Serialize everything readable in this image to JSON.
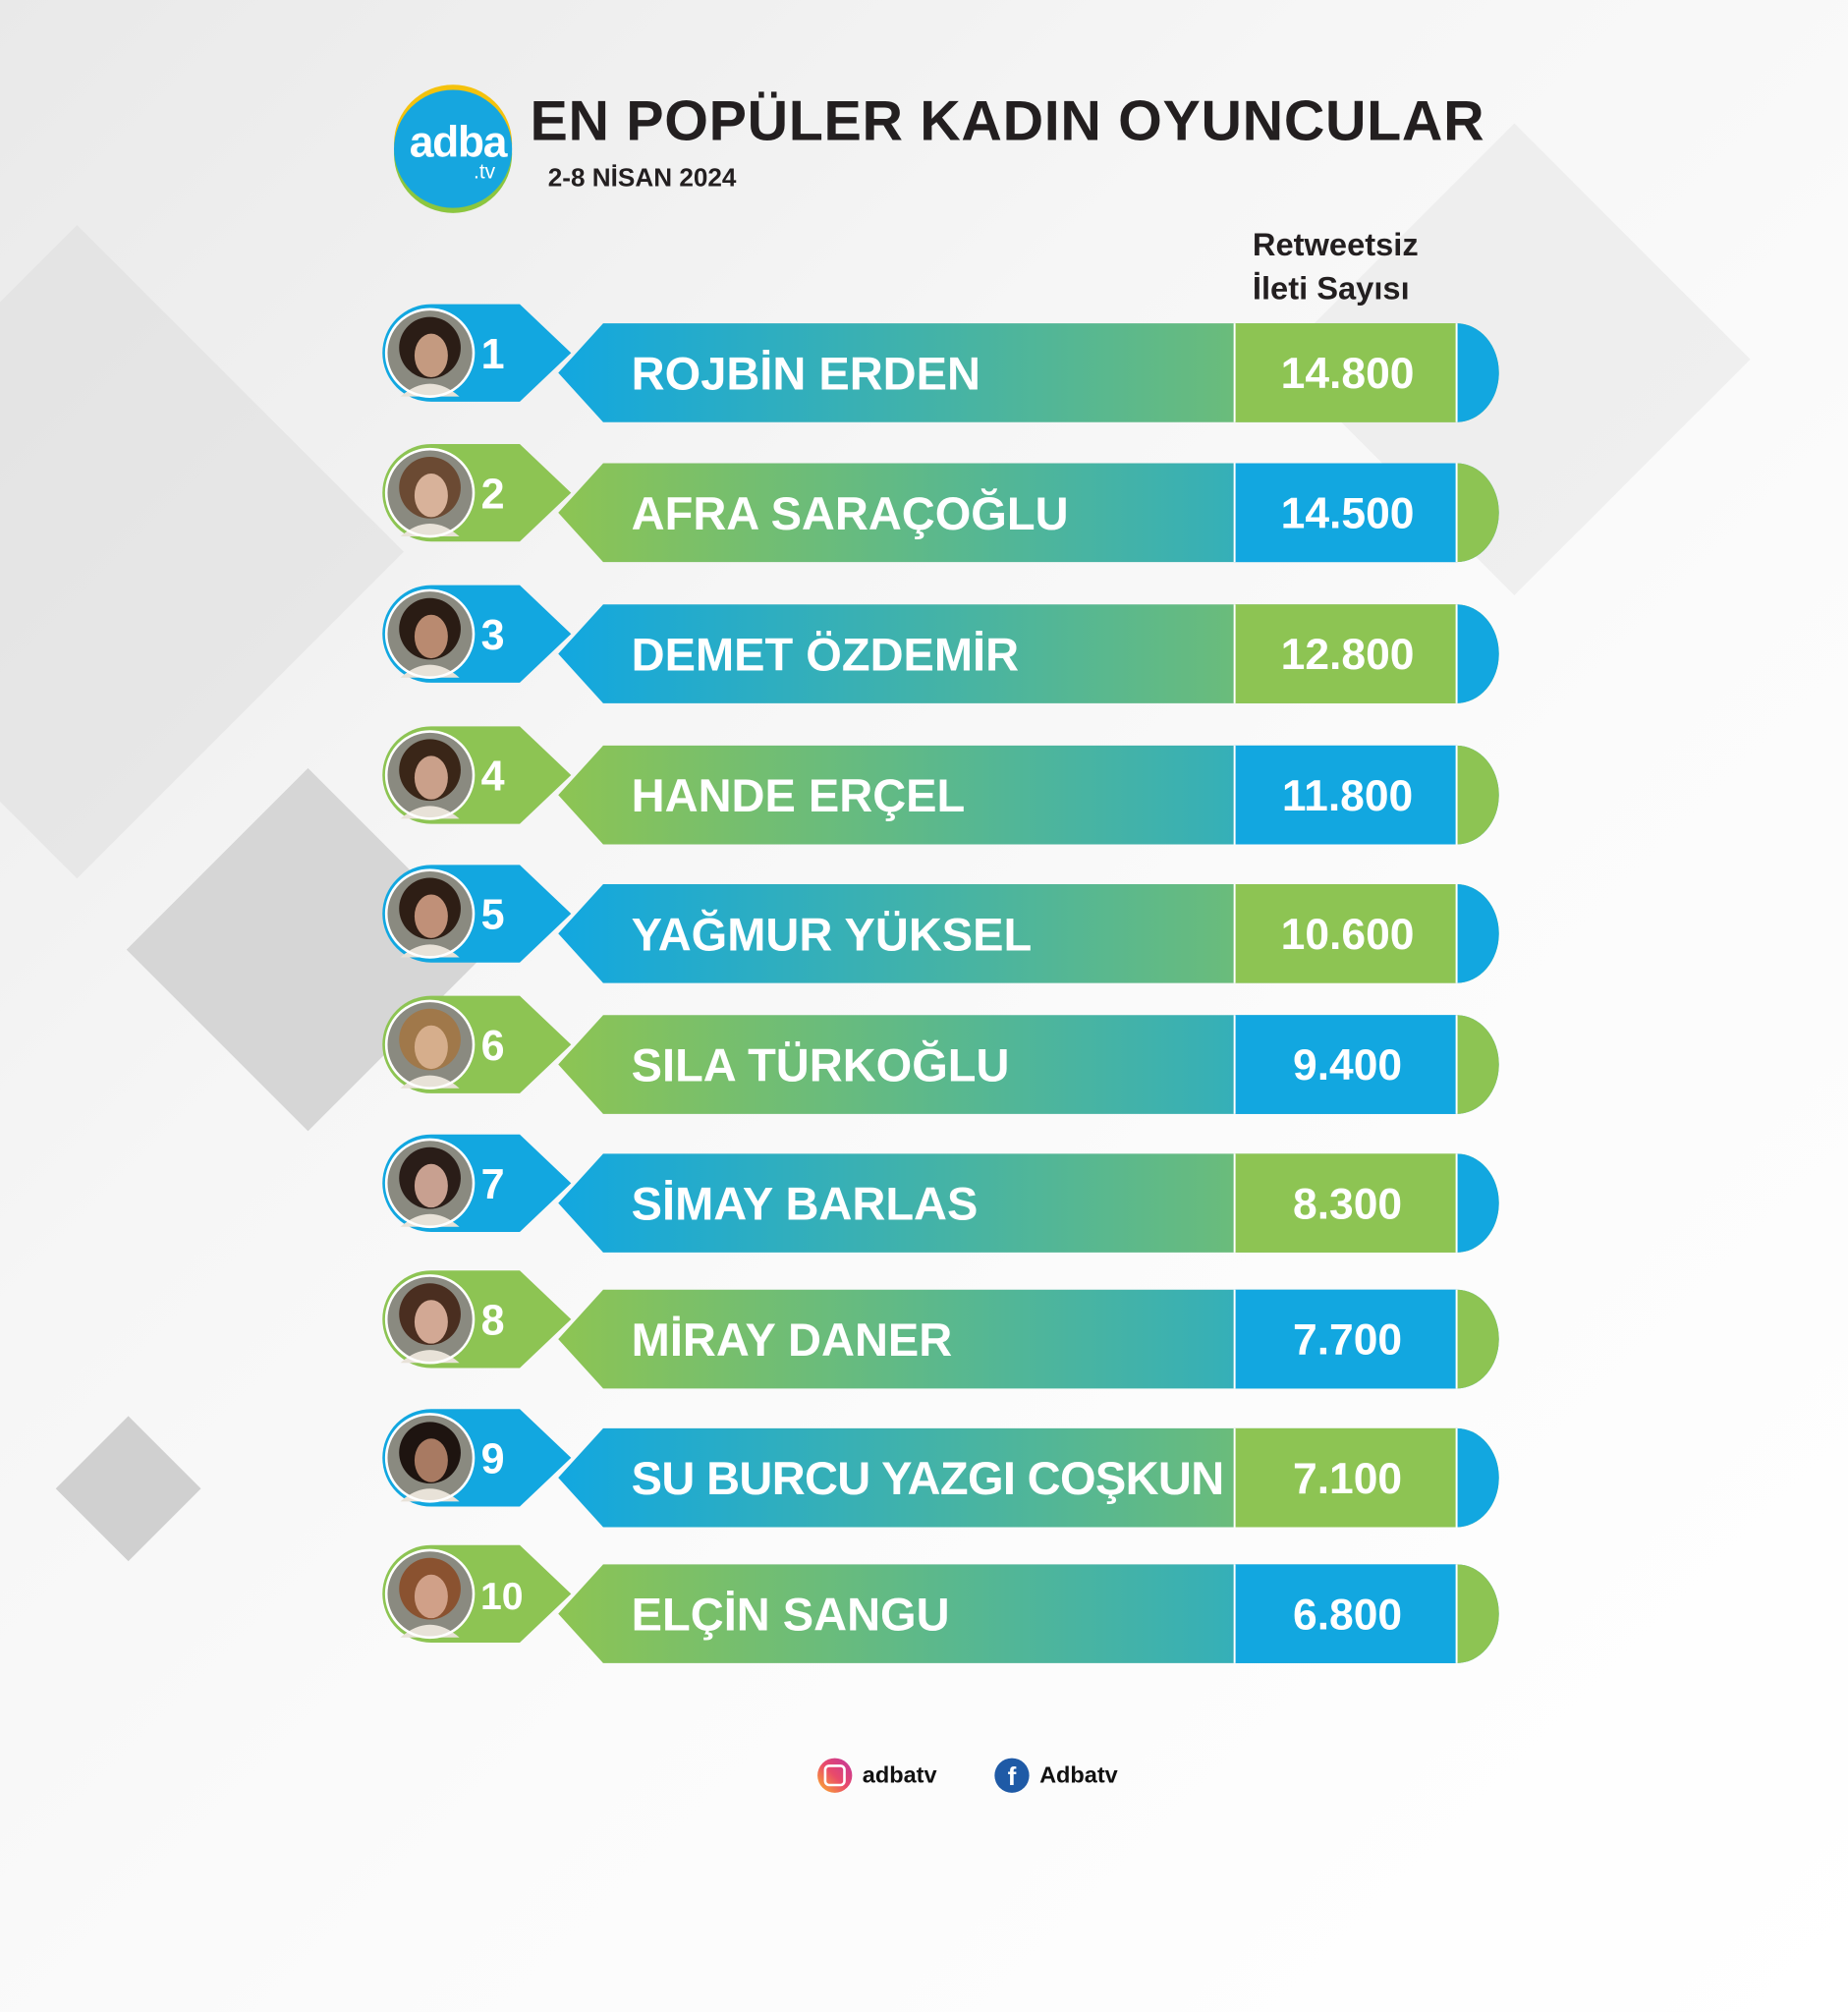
{
  "header": {
    "logo_text": "adba",
    "logo_suffix": ".tv",
    "title": "EN POPÜLER KADIN OYUNCULAR",
    "subtitle": "2-8 NİSAN 2024",
    "column_header_line1": "Retweetsiz",
    "column_header_line2": "İleti Sayısı"
  },
  "chart_data": {
    "type": "bar",
    "title": "EN POPÜLER KADIN OYUNCULAR",
    "subtitle": "2-8 NİSAN 2024",
    "ylabel": "Retweetsiz İleti Sayısı",
    "ranks": [
      "1",
      "2",
      "3",
      "4",
      "5",
      "6",
      "7",
      "8",
      "9",
      "10"
    ],
    "categories": [
      "ROJBİN ERDEN",
      "AFRA SARAÇOĞLU",
      "DEMET ÖZDEMİR",
      "HANDE ERÇEL",
      "YAĞMUR YÜKSEL",
      "SILA TÜRKOĞLU",
      "SİMAY BARLAS",
      "MİRAY DANER",
      "SU BURCU YAZGI COŞKUN",
      "ELÇİN SANGU"
    ],
    "values": [
      14800,
      14500,
      12800,
      11800,
      10600,
      9400,
      8300,
      7700,
      7100,
      6800
    ],
    "value_labels": [
      "14.800",
      "14.500",
      "12.800",
      "11.800",
      "10.600",
      "9.400",
      "8.300",
      "7.700",
      "7.100",
      "6.800"
    ],
    "colors": {
      "blue": "#12a7e0",
      "green": "#8dc453"
    }
  },
  "footer": {
    "instagram_icon": "instagram-icon",
    "instagram_handle": "adbatv",
    "facebook_icon": "facebook-icon",
    "facebook_handle": "Adbatv"
  }
}
